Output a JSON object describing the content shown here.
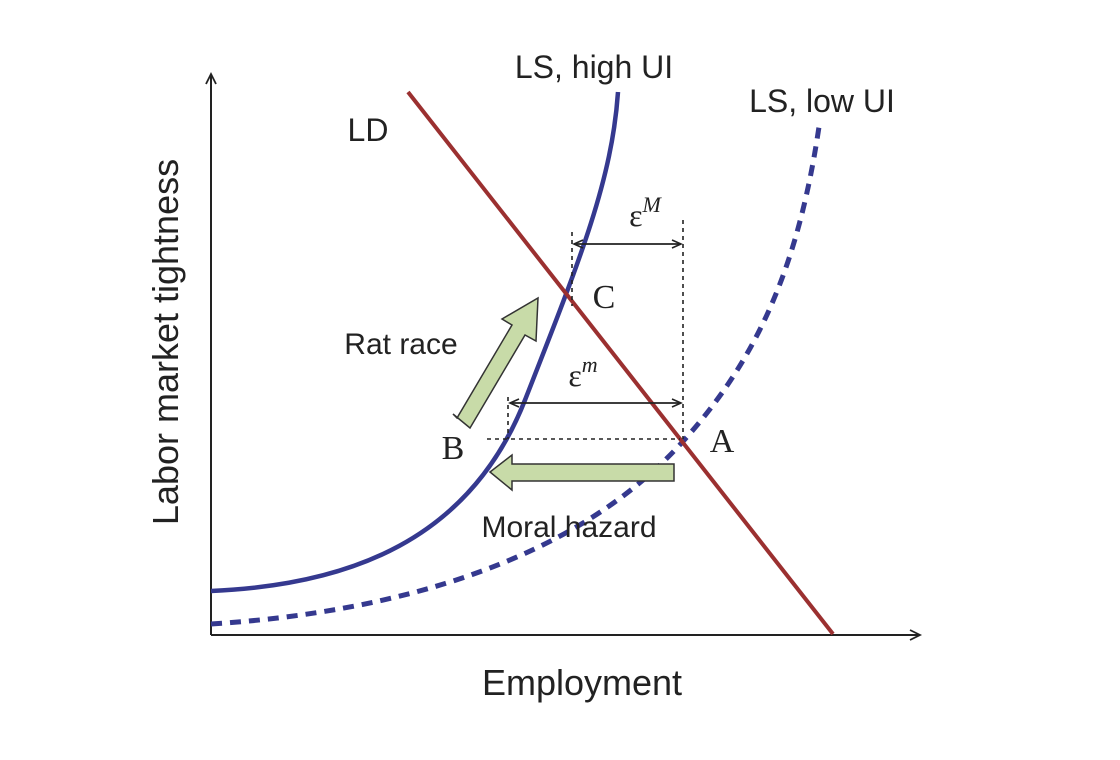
{
  "axes": {
    "x_label": "Employment",
    "y_label": "Labor market tightness"
  },
  "curves": {
    "ls_high": {
      "label": "LS, high UI",
      "color": "#35398f",
      "style": "solid"
    },
    "ls_low": {
      "label": "LS, low UI",
      "color": "#35398f",
      "style": "dashed"
    },
    "ld": {
      "label": "LD",
      "color": "#9b3030",
      "style": "solid"
    }
  },
  "points": {
    "a": "A",
    "b": "B",
    "c": "C"
  },
  "elasticities": {
    "macro_symbol": "ε",
    "macro_sup": "M",
    "micro_symbol": "ε",
    "micro_sup": "m"
  },
  "arrows": {
    "rat_race": "Rat race",
    "moral_hazard": "Moral hazard",
    "fill_color": "#c8dba8"
  }
}
